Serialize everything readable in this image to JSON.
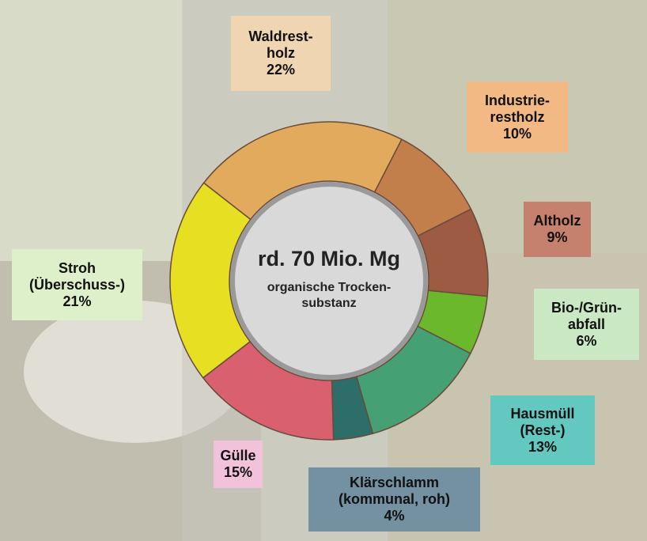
{
  "chart_data": {
    "type": "donut",
    "center_title": "rd. 70 Mio. Mg",
    "center_subtitle": "organische Trocken-\nsubstanz",
    "categories": [
      "Waldrest-\nholz",
      "Industrie-\nrestholz",
      "Altholz",
      "Bio-/Grün-\nabfall",
      "Hausmüll\n(Rest-)",
      "Klärschlamm\n(kommunal, roh)",
      "Gülle",
      "Stroh\n(Überschuss-)"
    ],
    "values": [
      22,
      10,
      9,
      6,
      13,
      4,
      15,
      21
    ],
    "value_labels": [
      "22%",
      "10%",
      "9%",
      "6%",
      "13%",
      "4%",
      "15%",
      "21%"
    ],
    "colors": [
      "#e2aa5c",
      "#c27f4c",
      "#9c5b42",
      "#6cb82c",
      "#45a074",
      "#2d6e6a",
      "#d9616f",
      "#e6df22"
    ],
    "label_colors": [
      "#f0d5b2",
      "#f2b985",
      "#c6806e",
      "#cbe8c4",
      "#62c8c0",
      "#7391a1",
      "#f2c2da",
      "#def0c9"
    ]
  }
}
